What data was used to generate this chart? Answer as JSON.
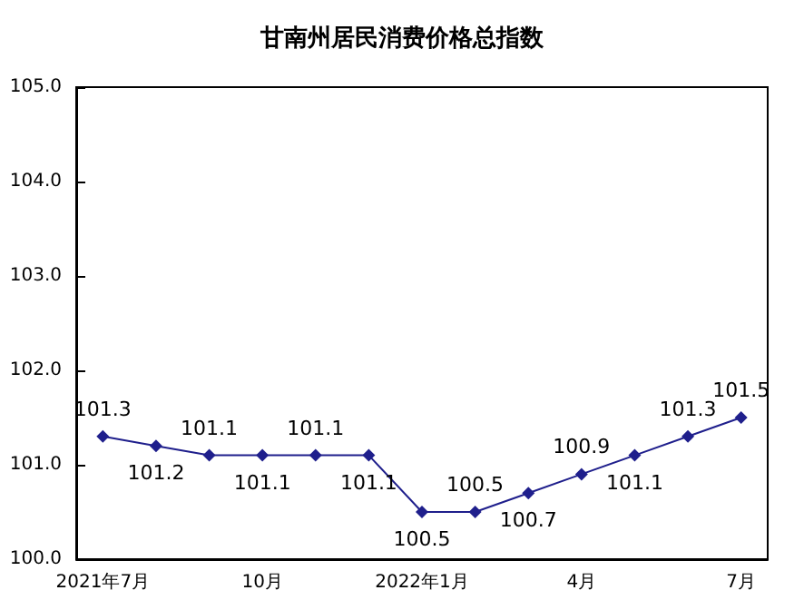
{
  "chart_data": {
    "type": "line",
    "title": "甘南州居民消费价格总指数",
    "categories": [
      "2021年7月",
      null,
      null,
      "10月",
      null,
      null,
      "2022年1月",
      null,
      null,
      "4月",
      null,
      null,
      "7月"
    ],
    "series": [
      {
        "color": "#1f1f8c",
        "values": [
          101.3,
          101.2,
          101.1,
          101.1,
          101.1,
          101.1,
          100.5,
          100.5,
          100.7,
          100.9,
          101.1,
          101.3,
          101.5
        ]
      }
    ],
    "ylim": [
      100,
      105
    ],
    "yticks": [
      {
        "value": 100,
        "label": "100.0"
      },
      {
        "value": 101,
        "label": "101.0"
      },
      {
        "value": 102,
        "label": "102.0"
      },
      {
        "value": 103,
        "label": "103.0"
      },
      {
        "value": 104,
        "label": "104.0"
      },
      {
        "value": 105,
        "label": "105.0"
      }
    ],
    "grid": false,
    "marker": "diamond",
    "line_style": "solid",
    "data_labels": true
  }
}
